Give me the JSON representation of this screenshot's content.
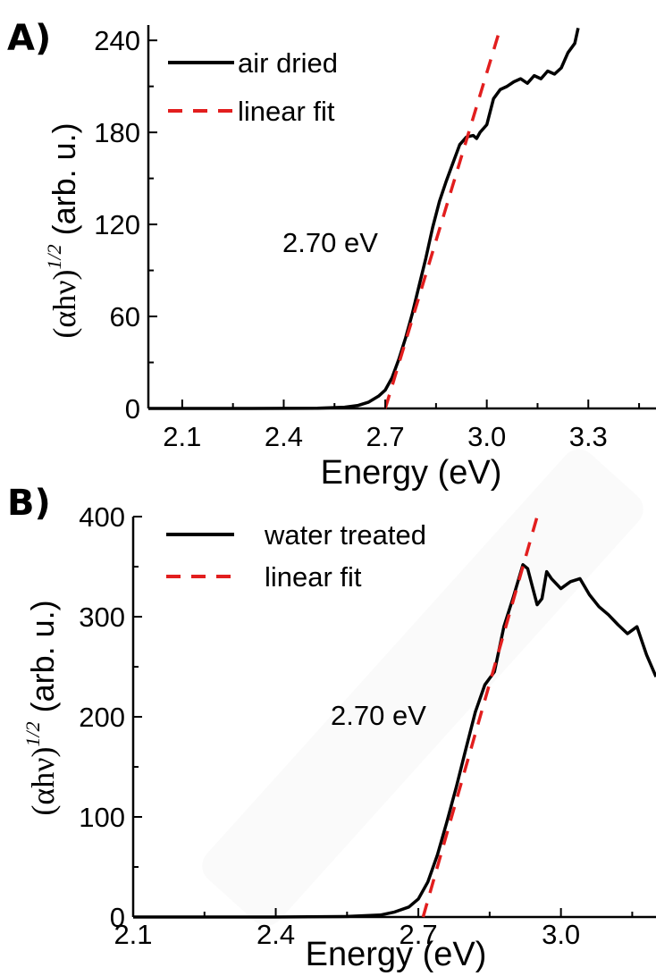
{
  "chart_data": [
    {
      "panel": "A)",
      "type": "line",
      "xlabel": "Energy (eV)",
      "ylabel": {
        "open": "(",
        "alpha": "α",
        "h": "h",
        "nu": "ν",
        "close": ")",
        "power": "1/2",
        "units": " (arb. u.)"
      },
      "xlim": [
        2.0,
        3.5
      ],
      "ylim": [
        0,
        250
      ],
      "xticks": [
        2.1,
        2.4,
        2.7,
        3.0,
        3.3
      ],
      "xtick_labels": [
        "2.1",
        "2.4",
        "2.7",
        "3.0",
        "3.3"
      ],
      "yticks": [
        0,
        60,
        120,
        180,
        240
      ],
      "ytick_labels": [
        "0",
        "60",
        "120",
        "180",
        "240"
      ],
      "legend_position": "top-left",
      "annotation": "2.70 eV",
      "series": [
        {
          "name": "air dried",
          "style": "solid",
          "color": "#000000",
          "x": [
            2.0,
            2.3,
            2.5,
            2.58,
            2.62,
            2.65,
            2.68,
            2.7,
            2.72,
            2.74,
            2.76,
            2.78,
            2.8,
            2.82,
            2.84,
            2.86,
            2.88,
            2.9,
            2.92,
            2.94,
            2.96,
            2.97,
            2.98,
            3.0,
            3.02,
            3.04,
            3.06,
            3.08,
            3.1,
            3.12,
            3.14,
            3.16,
            3.18,
            3.2,
            3.22,
            3.24,
            3.26,
            3.27
          ],
          "y": [
            0,
            0,
            0.2,
            0.8,
            2,
            4,
            8,
            12,
            20,
            32,
            46,
            62,
            80,
            98,
            118,
            135,
            148,
            160,
            172,
            177,
            178,
            176,
            180,
            185,
            202,
            208,
            210,
            213,
            215,
            212,
            217,
            215,
            220,
            218,
            222,
            232,
            238,
            248
          ]
        },
        {
          "name": "linear fit",
          "style": "dashed",
          "color": "#e21e1e",
          "x": [
            2.7,
            3.04
          ],
          "y": [
            0,
            248
          ]
        }
      ]
    },
    {
      "panel": "B)",
      "type": "line",
      "xlabel": "Energy (eV)",
      "ylabel": {
        "open": "(",
        "alpha": "α",
        "h": "h",
        "nu": "ν",
        "close": ")",
        "power": "1/2",
        "units": " (arb. u.)"
      },
      "xlim": [
        2.1,
        3.2
      ],
      "ylim": [
        0,
        400
      ],
      "xticks": [
        2.1,
        2.4,
        2.7,
        3.0
      ],
      "xtick_labels": [
        "2.1",
        "2.4",
        "2.7",
        "3.0"
      ],
      "yticks": [
        0,
        100,
        200,
        300,
        400
      ],
      "ytick_labels": [
        "0",
        "100",
        "200",
        "300",
        "400"
      ],
      "legend_position": "top-left",
      "annotation": "2.70 eV",
      "series": [
        {
          "name": "water treated",
          "style": "solid",
          "color": "#000000",
          "x": [
            2.1,
            2.4,
            2.55,
            2.62,
            2.65,
            2.68,
            2.7,
            2.72,
            2.74,
            2.76,
            2.78,
            2.8,
            2.82,
            2.84,
            2.86,
            2.88,
            2.9,
            2.92,
            2.93,
            2.94,
            2.95,
            2.96,
            2.97,
            2.98,
            3.0,
            3.02,
            3.04,
            3.06,
            3.08,
            3.1,
            3.12,
            3.14,
            3.16,
            3.18,
            3.2
          ],
          "y": [
            0,
            0,
            0.5,
            2,
            5,
            10,
            18,
            35,
            62,
            95,
            130,
            168,
            205,
            232,
            245,
            290,
            320,
            352,
            348,
            330,
            312,
            318,
            345,
            338,
            328,
            335,
            338,
            322,
            310,
            302,
            292,
            283,
            290,
            262,
            240
          ]
        },
        {
          "name": "linear fit",
          "style": "dashed",
          "color": "#e21e1e",
          "x": [
            2.71,
            2.95
          ],
          "y": [
            0,
            400
          ]
        }
      ]
    }
  ]
}
